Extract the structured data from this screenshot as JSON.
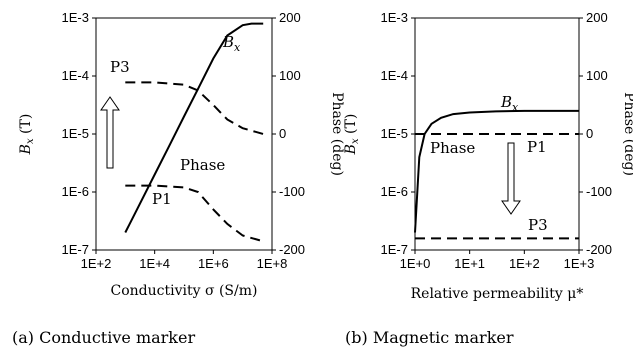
{
  "chart_data": [
    {
      "type": "line",
      "caption": "(a) Conductive marker",
      "xlabel": "Conductivity σ (S/m)",
      "ylabel_left": "Bx (T)",
      "ylabel_right": "Phase (deg)",
      "x_scale": "log",
      "y_left_scale": "log",
      "xlim": [
        100,
        100000000
      ],
      "ylim_left": [
        1e-07,
        0.001
      ],
      "ylim_right": [
        -200,
        200
      ],
      "x_ticks": [
        "1E+2",
        "1E+4",
        "1E+6",
        "1E+8"
      ],
      "y_left_ticks": [
        "1E-7",
        "1E-6",
        "1E-5",
        "1E-4",
        "1E-3"
      ],
      "y_right_ticks": [
        "-200",
        "-100",
        "0",
        "100",
        "200"
      ],
      "series": [
        {
          "name": "Bx",
          "axis": "left",
          "style": "solid",
          "x": [
            1000,
            3000,
            10000,
            30000,
            100000,
            300000,
            1000000,
            3000000,
            10000000,
            20000000,
            50000000
          ],
          "y": [
            2e-07,
            6e-07,
            2e-06,
            6e-06,
            2e-05,
            6e-05,
            0.0002,
            0.0005,
            0.00075,
            0.0008,
            0.0008
          ]
        },
        {
          "name": "P3",
          "axis": "right",
          "style": "dashed",
          "x": [
            1000,
            10000,
            100000,
            300000,
            1000000,
            3000000,
            10000000,
            50000000
          ],
          "y": [
            89,
            89,
            85,
            75,
            50,
            25,
            10,
            0
          ]
        },
        {
          "name": "P1",
          "axis": "right",
          "style": "dashed",
          "x": [
            1000,
            10000,
            100000,
            300000,
            1000000,
            3000000,
            10000000,
            50000000
          ],
          "y": [
            -89,
            -89,
            -92,
            -100,
            -130,
            -155,
            -175,
            -185
          ]
        }
      ],
      "annotations": {
        "bx": "B",
        "bx_sub": "x",
        "p3": "P3",
        "p1": "P1",
        "phase": "Phase"
      }
    },
    {
      "type": "line",
      "caption": "(b) Magnetic marker",
      "xlabel": "Relative permeability μ*",
      "ylabel_left": "Bx (T)",
      "ylabel_right": "Phase (deg)",
      "x_scale": "log",
      "y_left_scale": "log",
      "xlim": [
        1,
        1000
      ],
      "ylim_left": [
        1e-07,
        0.001
      ],
      "ylim_right": [
        -200,
        200
      ],
      "x_ticks": [
        "1E+0",
        "1E+1",
        "1E+2",
        "1E+3"
      ],
      "y_left_ticks": [
        "1E-7",
        "1E-6",
        "1E-5",
        "1E-4",
        "1E-3"
      ],
      "y_right_ticks": [
        "-200",
        "-100",
        "0",
        "100",
        "200"
      ],
      "series": [
        {
          "name": "Bx",
          "axis": "left",
          "style": "solid",
          "x": [
            1,
            1.2,
            1.5,
            2,
            3,
            5,
            10,
            30,
            100,
            300,
            1000
          ],
          "y": [
            2e-07,
            4e-06,
            1e-05,
            1.5e-05,
            1.9e-05,
            2.2e-05,
            2.35e-05,
            2.45e-05,
            2.5e-05,
            2.5e-05,
            2.5e-05
          ]
        },
        {
          "name": "P1",
          "axis": "right",
          "style": "dashed",
          "x": [
            1,
            1000
          ],
          "y": [
            0,
            0
          ]
        },
        {
          "name": "P3",
          "axis": "right",
          "style": "dashed",
          "x": [
            1,
            1000
          ],
          "y": [
            -180,
            -180
          ]
        }
      ],
      "annotations": {
        "bx": "B",
        "bx_sub": "x",
        "p3": "P3",
        "p1": "P1",
        "phase": "Phase"
      }
    }
  ]
}
